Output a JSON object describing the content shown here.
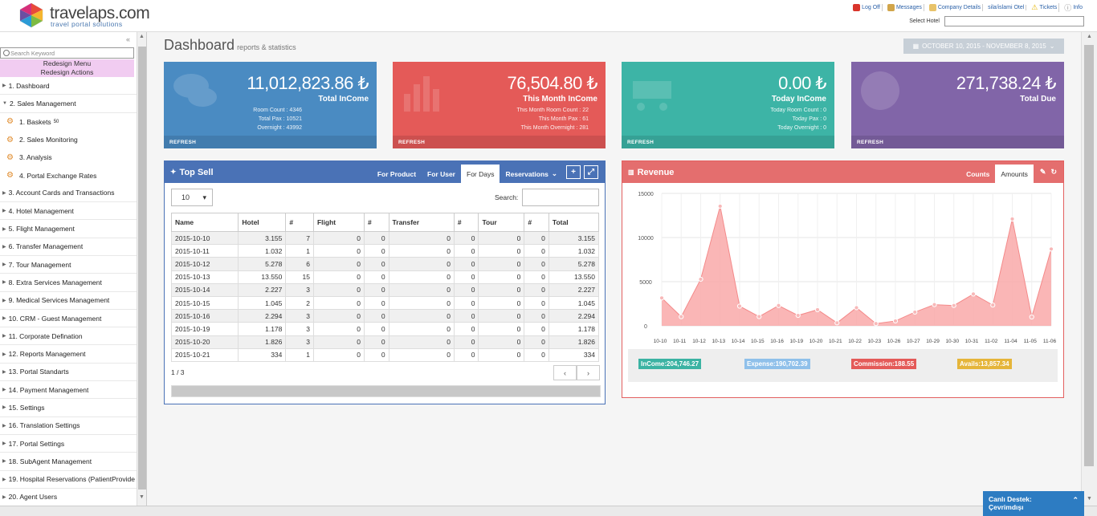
{
  "brand": {
    "name": "travelaps.com",
    "tagline": "travel portal solutions"
  },
  "toplinks": [
    {
      "label": "Log Off",
      "icon": "log-off-icon",
      "color": "#d9342b"
    },
    {
      "label": "Messages",
      "icon": "messages-icon",
      "color": "#d1a54a"
    },
    {
      "label": "Company Details",
      "icon": "company-icon",
      "color": "#e8c36a"
    },
    {
      "label": "sila/islami Otel",
      "icon": "",
      "color": ""
    },
    {
      "label": "Tickets",
      "icon": "warning-icon",
      "color": "#e5b500"
    },
    {
      "label": "Info",
      "icon": "info-icon",
      "color": "#9a9a9a"
    }
  ],
  "select_hotel": {
    "label": "Select Hotel",
    "value": ""
  },
  "sidebar": {
    "search_placeholder": "Search Keyword",
    "redesign_menu": "Redesign Menu",
    "redesign_actions": "Redesign Actions",
    "items": [
      {
        "label": "1. Dashboard"
      },
      {
        "label": "2. Sales Management",
        "expanded": true
      },
      {
        "label": "1. Baskets",
        "badge": "50",
        "sub": true,
        "icon": "baskets-icon"
      },
      {
        "label": "2. Sales Monitoring",
        "sub": true,
        "icon": "monitoring-icon"
      },
      {
        "label": "3. Analysis",
        "sub": true,
        "icon": "analysis-icon"
      },
      {
        "label": "4. Portal Exchange Rates",
        "sub": true,
        "icon": "exchange-icon"
      },
      {
        "label": "3. Account Cards and Transactions"
      },
      {
        "label": "4. Hotel Management"
      },
      {
        "label": "5. Flight Management"
      },
      {
        "label": "6. Transfer Management"
      },
      {
        "label": "7. Tour Management"
      },
      {
        "label": "8. Extra Services Management"
      },
      {
        "label": "9. Medical Services Management"
      },
      {
        "label": "10. CRM - Guest Management"
      },
      {
        "label": "11. Corporate Defination"
      },
      {
        "label": "12. Reports Management"
      },
      {
        "label": "13. Portal Standarts"
      },
      {
        "label": "14. Payment Management"
      },
      {
        "label": "15. Settings"
      },
      {
        "label": "16. Translation Settings"
      },
      {
        "label": "17. Portal Settings"
      },
      {
        "label": "18. SubAgent Management"
      },
      {
        "label": "19. Hospital Reservations (PatientProvide"
      },
      {
        "label": "20. Agent Users"
      }
    ]
  },
  "page": {
    "title": "Dashboard",
    "subtitle": "reports & statistics",
    "date_range": "OCTOBER 10, 2015 - NOVEMBER 8, 2015"
  },
  "stats": [
    {
      "value": "11,012,823.86 ₺",
      "label": "Total InCome",
      "details": [
        "Room Count : 4346",
        "Total Pax : 10521",
        "Overnight : 43992"
      ],
      "refresh": "REFRESH",
      "color": "#4a8bc2"
    },
    {
      "value": "76,504.80 ₺",
      "label": "This Month InCome",
      "details": [
        "This Month Room Count : 22",
        "This Month Pax : 61",
        "This Month Overnight : 281"
      ],
      "refresh": "REFRESH",
      "color": "#e45a58"
    },
    {
      "value": "0.00 ₺",
      "label": "Today InCome",
      "details": [
        "Today Room Count : 0",
        "Today Pax : 0",
        "Today Overnight : 0"
      ],
      "refresh": "REFRESH",
      "color": "#3db4a6"
    },
    {
      "value": "271,738.24 ₺",
      "label": "Total Due",
      "details": [],
      "refresh": "REFRESH",
      "color": "#8165a8"
    }
  ],
  "top_sell": {
    "title": "Top Sell",
    "tabs": [
      "For Product",
      "For User",
      "For Days",
      "Reservations"
    ],
    "active_tab": "For Days",
    "page_length": "10",
    "search_label": "Search:",
    "columns": [
      "Name",
      "Hotel",
      "#",
      "Flight",
      "#",
      "Transfer",
      "#",
      "Tour",
      "#",
      "Total"
    ],
    "rows": [
      [
        "2015-10-10",
        "3.155",
        "7",
        "0",
        "0",
        "0",
        "0",
        "0",
        "0",
        "3.155"
      ],
      [
        "2015-10-11",
        "1.032",
        "1",
        "0",
        "0",
        "0",
        "0",
        "0",
        "0",
        "1.032"
      ],
      [
        "2015-10-12",
        "5.278",
        "6",
        "0",
        "0",
        "0",
        "0",
        "0",
        "0",
        "5.278"
      ],
      [
        "2015-10-13",
        "13.550",
        "15",
        "0",
        "0",
        "0",
        "0",
        "0",
        "0",
        "13.550"
      ],
      [
        "2015-10-14",
        "2.227",
        "3",
        "0",
        "0",
        "0",
        "0",
        "0",
        "0",
        "2.227"
      ],
      [
        "2015-10-15",
        "1.045",
        "2",
        "0",
        "0",
        "0",
        "0",
        "0",
        "0",
        "1.045"
      ],
      [
        "2015-10-16",
        "2.294",
        "3",
        "0",
        "0",
        "0",
        "0",
        "0",
        "0",
        "2.294"
      ],
      [
        "2015-10-19",
        "1.178",
        "3",
        "0",
        "0",
        "0",
        "0",
        "0",
        "0",
        "1.178"
      ],
      [
        "2015-10-20",
        "1.826",
        "3",
        "0",
        "0",
        "0",
        "0",
        "0",
        "0",
        "1.826"
      ],
      [
        "2015-10-21",
        "334",
        "1",
        "0",
        "0",
        "0",
        "0",
        "0",
        "0",
        "334"
      ]
    ],
    "page_info": "1 / 3",
    "prev": "‹",
    "next": "›"
  },
  "revenue": {
    "title": "Revenue",
    "tabs": [
      "Counts",
      "Amounts"
    ],
    "active_tab": "Amounts",
    "legend": [
      {
        "label": "InCome:204,746.27",
        "color": "#3bb3a3"
      },
      {
        "label": "Expense:190,702.39",
        "color": "#8fc0ea"
      },
      {
        "label": "Commission:188.55",
        "color": "#e45a58"
      },
      {
        "label": "Avails:13,857.34",
        "color": "#e5b53a"
      }
    ]
  },
  "chart_data": {
    "type": "area",
    "x": [
      "10-10",
      "10-11",
      "10-12",
      "10-13",
      "10-14",
      "10-15",
      "10-16",
      "10-19",
      "10-20",
      "10-21",
      "10-22",
      "10-23",
      "10-26",
      "10-27",
      "10-29",
      "10-30",
      "10-31",
      "11-02",
      "11-04",
      "11-05",
      "11-06"
    ],
    "series": [
      {
        "values": [
          3155,
          1032,
          5278,
          13550,
          2227,
          1045,
          2294,
          1178,
          1826,
          334,
          2050,
          250,
          550,
          1550,
          2400,
          2300,
          3600,
          2350,
          12100,
          1000,
          8700
        ]
      }
    ],
    "yticks": [
      0,
      5000,
      10000,
      15000
    ],
    "ylim": [
      0,
      15000
    ],
    "grid": true,
    "color": "#f9a9a9"
  },
  "support": {
    "title": "Canlı Destek:",
    "status": "Çevrimdışı"
  }
}
